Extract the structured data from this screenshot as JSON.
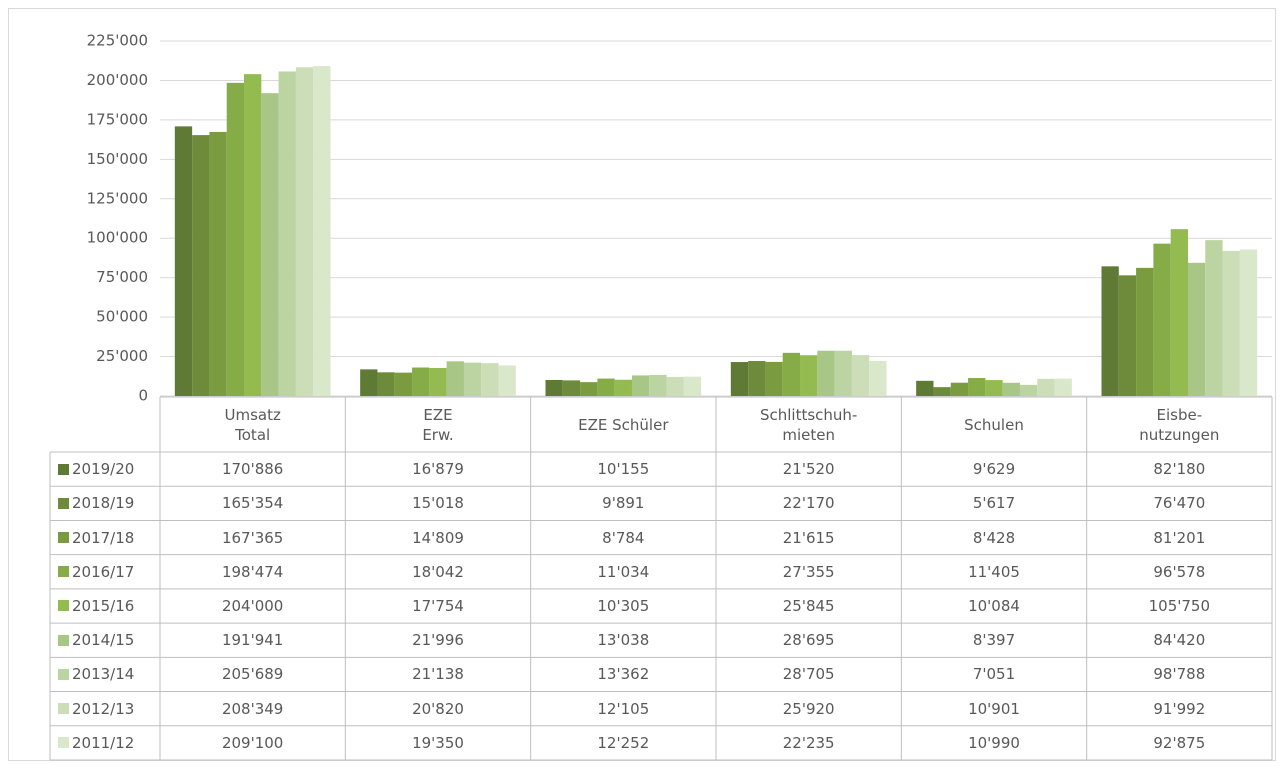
{
  "chart_data": {
    "type": "bar",
    "categories": [
      "Umsatz\nTotal",
      "EZE\nErw.",
      "EZE Schüler",
      "Schlittschuh-\nmieten",
      "Schulen",
      "Eisbe-\nnutzungen"
    ],
    "ylim": [
      0,
      225000
    ],
    "yticks": [
      0,
      {
        "value": 25000,
        "label": "25'000"
      },
      {
        "value": 50000,
        "label": "50'000"
      },
      {
        "value": 75000,
        "label": "75'000"
      },
      {
        "value": 100000,
        "label": "100'000"
      },
      {
        "value": 125000,
        "label": "125'000"
      },
      {
        "value": 150000,
        "label": "150'000"
      },
      {
        "value": 175000,
        "label": "175'000"
      },
      {
        "value": 200000,
        "label": "200'000"
      },
      {
        "value": 225000,
        "label": "225'000"
      }
    ],
    "grid": true,
    "series": [
      {
        "name": "2019/20",
        "color": "#5f7a35",
        "values": [
          170886,
          16879,
          10155,
          21520,
          9629,
          82180
        ],
        "value_labels": [
          "170'886",
          "16'879",
          "10'155",
          "21'520",
          "9'629",
          "82'180"
        ]
      },
      {
        "name": "2018/19",
        "color": "#6d8b3b",
        "values": [
          165354,
          15018,
          9891,
          22170,
          5617,
          76470
        ],
        "value_labels": [
          "165'354",
          "15'018",
          "9'891",
          "22'170",
          "5'617",
          "76'470"
        ]
      },
      {
        "name": "2017/18",
        "color": "#7a9b40",
        "values": [
          167365,
          14809,
          8784,
          21615,
          8428,
          81201
        ],
        "value_labels": [
          "167'365",
          "14'809",
          "8'784",
          "21'615",
          "8'428",
          "81'201"
        ]
      },
      {
        "name": "2016/17",
        "color": "#86ac47",
        "values": [
          198474,
          18042,
          11034,
          27355,
          11405,
          96578
        ],
        "value_labels": [
          "198'474",
          "18'042",
          "11'034",
          "27'355",
          "11'405",
          "96'578"
        ]
      },
      {
        "name": "2015/16",
        "color": "#93bb50",
        "values": [
          204000,
          17754,
          10305,
          25845,
          10084,
          105750
        ],
        "value_labels": [
          "204'000",
          "17'754",
          "10'305",
          "25'845",
          "10'084",
          "105'750"
        ]
      },
      {
        "name": "2014/15",
        "color": "#a8c686",
        "values": [
          191941,
          21996,
          13038,
          28695,
          8397,
          84420
        ],
        "value_labels": [
          "191'941",
          "21'996",
          "13'038",
          "28'695",
          "8'397",
          "84'420"
        ]
      },
      {
        "name": "2013/14",
        "color": "#bbd4a1",
        "values": [
          205689,
          21138,
          13362,
          28705,
          7051,
          98788
        ],
        "value_labels": [
          "205'689",
          "21'138",
          "13'362",
          "28'705",
          "7'051",
          "98'788"
        ]
      },
      {
        "name": "2012/13",
        "color": "#cbdeb8",
        "values": [
          208349,
          20820,
          12105,
          25920,
          10901,
          91992
        ],
        "value_labels": [
          "208'349",
          "20'820",
          "12'105",
          "25'920",
          "10'901",
          "91'992"
        ]
      },
      {
        "name": "2011/12",
        "color": "#d9e7cb",
        "values": [
          209100,
          19350,
          12252,
          22235,
          10990,
          92875
        ],
        "value_labels": [
          "209'100",
          "19'350",
          "12'252",
          "22'235",
          "10'990",
          "92'875"
        ]
      }
    ]
  }
}
